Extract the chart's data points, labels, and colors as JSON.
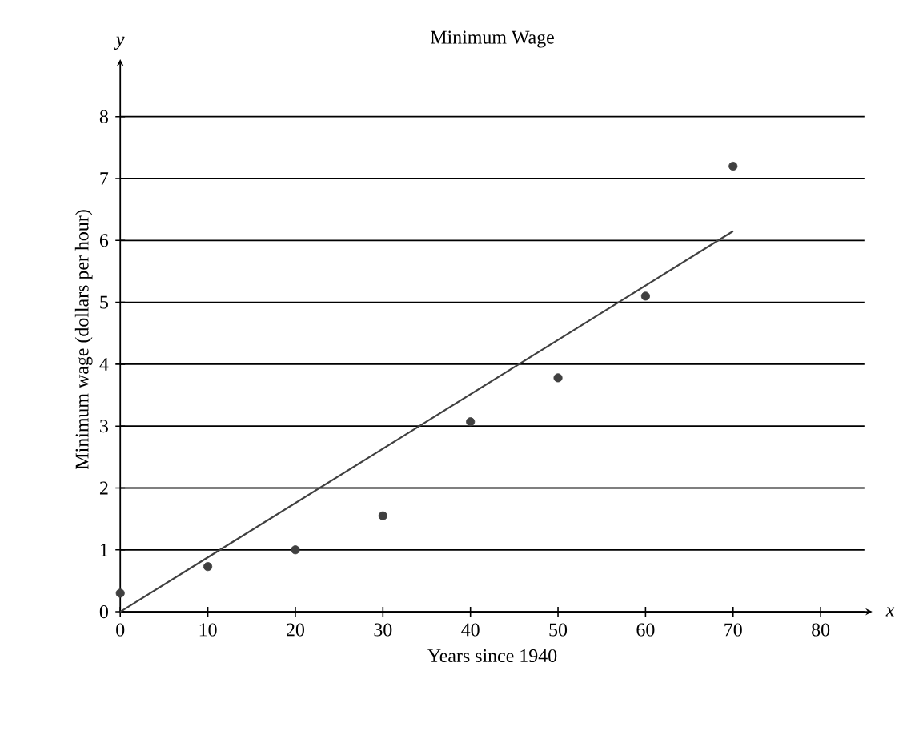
{
  "chart_data": {
    "type": "scatter",
    "title": "Minimum Wage",
    "xlabel": "Years since 1940",
    "ylabel": "Minimum wage (dollars per hour)",
    "annotations": [
      "y",
      "x"
    ],
    "x": [
      0,
      10,
      20,
      30,
      40,
      50,
      60,
      70
    ],
    "series": [
      {
        "color": "#404040",
        "marker": "circle",
        "values": [
          0.3,
          0.73,
          1.0,
          1.55,
          3.07,
          3.78,
          5.1,
          7.2
        ]
      },
      {
        "type": "line",
        "color": "#404040",
        "x": [
          0,
          70
        ],
        "values": [
          0,
          6.15
        ]
      }
    ],
    "xlim": [
      0,
      85
    ],
    "ylim": [
      0,
      8.8
    ],
    "xticks": [
      0,
      10,
      20,
      30,
      40,
      50,
      60,
      70,
      80
    ],
    "yticks": [
      0,
      1,
      2,
      3,
      4,
      5,
      6,
      7,
      8
    ],
    "grid": "y"
  }
}
